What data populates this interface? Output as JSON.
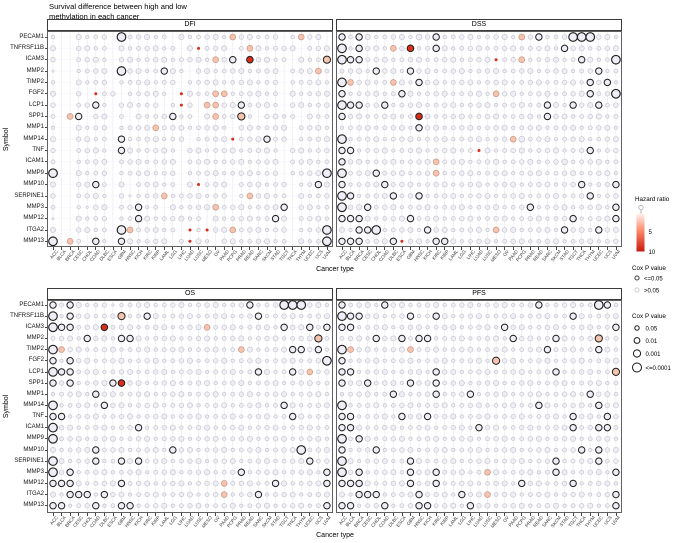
{
  "title": {
    "line1": "Survival difference between high and low",
    "line2": "methylation in each cancer"
  },
  "axes": {
    "x_title": "Cancer type",
    "y_title": "Symbol"
  },
  "genes": [
    "PECAM1",
    "TNFRSF11B",
    "ICAM3",
    "MMP2",
    "TIMP2",
    "FGF2",
    "LCP1",
    "SPP1",
    "MMP1",
    "MMP14",
    "TNF",
    "ICAM1",
    "MMP9",
    "MMP10",
    "SERPINE1",
    "MMP3",
    "MMP12",
    "ITGA2",
    "MMP13"
  ],
  "cancers": [
    "ACC",
    "BLCA",
    "BRCA",
    "CESC",
    "CHOL",
    "COAD",
    "DLBC",
    "ESCA",
    "GBM",
    "HNSC",
    "KICH",
    "KIRC",
    "KIRP",
    "LAML",
    "LGG",
    "LIHC",
    "LUAD",
    "LUSC",
    "MESO",
    "OV",
    "PAAD",
    "PCPG",
    "PRAD",
    "READ",
    "SARC",
    "SKCM",
    "STAD",
    "TGCT",
    "THCA",
    "THYM",
    "UCEC",
    "UCS",
    "UVM"
  ],
  "legend": {
    "hazard_ratio": {
      "title": "Hazard ratio",
      "scale_labels": [
        "5",
        "10"
      ],
      "color_low": "#fff3ef",
      "color_mid": "#fb8a6a",
      "color_high": "#c81a10"
    },
    "cox_p_color": {
      "title": "Cox P value",
      "items": [
        {
          "label": "<=0.05"
        },
        {
          "label": ">0.05"
        }
      ]
    },
    "cox_p_size": {
      "title": "Cox P value",
      "items": [
        "0.05",
        "0.01",
        "0.001",
        "<=0.0001"
      ]
    }
  },
  "colors": {
    "sig_stroke": "#1f1f1f",
    "ns_stroke": "#c7c6ce",
    "dot_fill": "#efeef6",
    "pink_fill": "#f6c3ae",
    "pink_stroke": "#cf9b89",
    "red_fill": "#d92e1c",
    "grid_v": "#e9e8f0",
    "grid_h": "#f3f2f7",
    "panel_border": "#3a3a3a"
  },
  "chart_data": {
    "type": "heatmap",
    "subtype": "bubble-matrix (dot size = Cox P value, dot color = hazard ratio, dark ring = Cox P <= 0.05)",
    "title": "Survival difference between high and low methylation in each cancer",
    "xlabel": "Cancer type",
    "ylabel": "Symbol",
    "x_categories_key": "cancers",
    "y_categories_key": "genes",
    "encoding": {
      "-": "no data",
      "a": "HR~1, p>0.05, very small",
      "b": "HR~1, p>0.05, small",
      "c": "HR~1, p>0.05, medium",
      "B": "HR~1, p<=0.05 small",
      "C": "HR~1, p<=0.05 medium",
      "D": "HR~1, p<=0.0001 large",
      "p": "elevated HR (pink fill), p>0.05",
      "P": "elevated HR (pink fill), p<=0.05",
      "r": "high HR (red fill), tiny",
      "R": "high HR (red fill), p<=0.05"
    },
    "panels": [
      {
        "id": "DFI",
        "rows": [
          "b--bbbb-Dbbbbb-bbbbbbpbbbbb-bpbb-",
          "b--bbbb-bbbbbbb-brbbb-bpbbbbb-bbb",
          "b--bbbb-bbbbbbbbbbbpbC-Rbbbb-bbbP",
          "a--bbbb-DbbbbCbb-bbbbbbbbbb-bbbpb",
          "b--bbbb-bbbbbbb-bbbbbbbbbbb-bbbbb",
          "b--b-rbb-bbbbb-rbbbppbbbbbb-bbbbb",
          "b--bbCb-bbbbb-brb-ppbbCbbbb-bbbbb",
          "b-pC-bb-b-bbbbCbb-bpbbPb-bbbb-bbb",
          "b--bbbb-bbbbpbbbbbbbb-bbbbbb-bbbb",
          "b--bbbb-Cbbbbbbb-bbbbrbbbCbb-bbbb",
          "b--bbbb-Cbbbbbb-bbbbbbbbbbb-bbbbb",
          "b--bbbb-bbbbbbb-bbbbbbbbbbb-bbbbb",
          "D--bbbb-bbbbbbb-bbbbbbbbbbb-bbbbD",
          "b--bbCb-b-bbbbb-brbbb-bbbbbb-bbCb",
          "b--bbbb-babbbpbbbbbbb-bpbbbb-bbbb",
          "b--babb-bbCbb-bbbbbpbbbbbbbC-bbbb",
          "a--bbbb-bbCbbbbbbb-bbbbbbbCb-bbbb",
          "b--bbbb-Dpbbbbb-rbrbbpbbbbbb-bbbD",
          "D-pb-Cb-Cbbbbb-brbb-bbbbbbbb-bbbD"
        ]
      },
      {
        "id": "DSS",
        "rows": [
          "CbCbbbbbbcbCbbbbbbbbbpbCbbbDDDbbb",
          "DbCbbbpbRbbCbbbbbbbbbbbbbbCbbbbbb",
          "DCCbbbbbbbbbbbbbbbrbbpbbbbbbCbbbD",
          "bbbbCbbbCbbbbbbbbbbbbbbbbbbbbbCbb",
          "DpbbbbpbbCbbbbbbbbbbbbbbbbbbbCbCb",
          "CbbbbbbCbbbbbbbbbbpbbbbbbbbbbCbbD",
          "DCCbbCbbbbbbbbbbbbbbbbbbCbbCbbCbb",
          "CbbbbbbbbRbbbbbbbbbbbbbbCbbbbbbbb",
          "bbbbbbbbbCbbbbbbbbbbbbbbbbbbbbbbb",
          "Dbbbbbbbbbbbbbbbbbbbpcbbbbbbbbbbb",
          "CCbbbbbbbbbbbbbbrbbbbbbbbbbbbCbbb",
          "Cbbbbbbbbbbpbbbbbbbbbbbbbbcbbbbbb",
          "DbbbCbbbbbbpbbbbbbbbbbbbbbbbbbbbb",
          "CbbbbCbbbbbbbbbbbbbbbbbbbbbbCbbbC",
          "DCbbbbCbbCbbbbbbbbbbbbbbbbbbbCbbb",
          "DbbCbbbbbbbbbbbbbbbbbbCbbbbbbbbbC",
          "CCCbbbbbCbbbbbbbbbbbbbbbbbbCbbbbC",
          "bbCCDbbbbbCbbbbbbbpbbbbbbbCbbbCbb",
          "CCCbbbCrbbbCCbbbbbbbbbbbbbbbbbbbb"
        ]
      },
      {
        "id": "OS",
        "rows": [
          "CbCbbbbabbbbbbbbbbbbbbbCbbbDDDbbb",
          "DbCbbbbbPbbCbbbbbbbbbbbbCbbbbbbbb",
          "DCCbbbRbbbbbbbbbbbpbbbbbbbbCbbCbC",
          "bbbbCbbbCCbbbbbbbbbbbbbbbbbbbbbPb",
          "DpbbbbbbbbbbbbbbbbbbbbpbbbbbCCbCb",
          "CbCbbbbbbbbbbbbbbbbbbbbbbbbbbbbbD",
          "DCCbbbbbbbbbbbbbbbbbbbbbCbbbCbpbb",
          "CbCbbbbCRbbbbbbbbbbbbbbbbbbbbbbbb",
          "bbbbbCbbbbbbbbbbbbbbbbbbbbbbbbbbb",
          "DbbbbbCbbbbbbbbbbbbbbbbbbbbCbbbbb",
          "CCbbbbbbbbbbbbbbbbbbbbbbbbbbCbbbb",
          "DbbbbbbbbbCbbbbbbbbbbbbbbbbbbbbbb",
          "Dbbbbbbbbbbbbbbbbbbbbbbbbbbbbbbbb",
          "bbbbbCbbbbbbbbCbbbbbbbbbbbbbbDbbb",
          "DbbbbCbbCbCbbbbbbbbbbbbbbbbbbbCbb",
          "DbCbbbbbbbbbbbbbbbbbbbCbbbbbbbbbC",
          "CCCbbbbbCbbbbbbbbbbbpbbbbbCbbbbbC",
          "bbCCCbCbbbbbbbbbbbbbpbbbCbbbbbbbb",
          "CCbbbCbbCCbbbbbbbbbbbbbbbbbbbbbbC"
        ]
      },
      {
        "id": "PFS",
        "rows": [
          "CbbbbCbbbbbbbbbbbbbbbbbCbbbbbbDCb",
          "DCCbbbbbCbbCbbbbbbbbbbbbbbbCbbbbb",
          "CCbbbbbbbbbbbbbbbbbCbbbbbbbbbbbbC",
          "bbbbCbbCbCCbbbbbbbbbCbbbbCbbbbPbb",
          "DpbbbbbbpbbbbbbbbbbbbbbbCbbbbbCbb",
          "CbbbbbbbbbbbbbbbbbPbbbbbbbbbbbbbb",
          "CCbbbbbbbbbCbbbbbbbbbbbbbCbbbbbbP",
          "CbbCbbbbCbbCbbbbbbbbbbbbbbbbbbbbb",
          "bbbbbbCbbbbCbbbCbbbbbbbbbbbbbCbbb",
          "DbbbbbbbbbbbbbbbbbbbbbbCbbbbbbCbb",
          "CCbbbbbCbbCbbbbbbbbbbbbbbbbCbbbCb",
          "CCbbbbbbbbbbbbbbCbbbbbbbbbbCbbCCb",
          "DbCbbbbbbbbbbbbbbbbbbbbbbbbbbbbbb",
          "CbbbCbbbbbbbbbbbbbbbbbbbbbbbCbCbb",
          "DbbbbbbbCbbbbbbbbbbbbbbbbCbbbbCbb",
          "DbCbbbbbCbbCbbbbbpbbbbbbbCbbbbbbC",
          "CCCbbbbbCbbCbbbbbbbbbCbbbbbCbbbbb",
          "bbCCCbbbbCbbbbCbbpbbbbbbbbbbbbbbC",
          "CCbbbCbbbCCbbbbCbbbbbbbbbbbbbbbbC"
        ]
      }
    ]
  }
}
